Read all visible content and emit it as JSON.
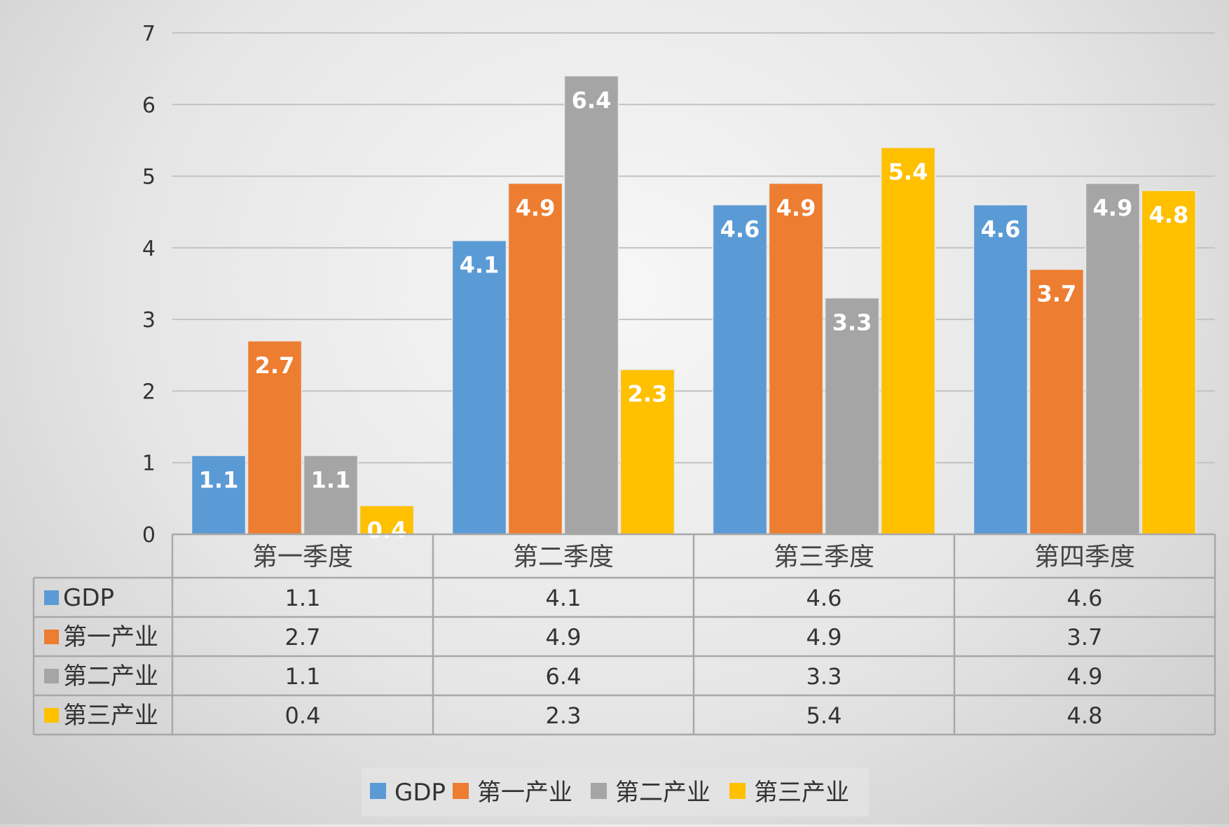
{
  "chart_data": {
    "type": "bar",
    "title": "",
    "xlabel": "",
    "ylabel": "",
    "ylim": [
      0,
      7
    ],
    "yticks": [
      0,
      1,
      2,
      3,
      4,
      5,
      6,
      7
    ],
    "grid": true,
    "data_table": true,
    "legend_position": "bottom",
    "categories": [
      "第一季度",
      "第二季度",
      "第三季度",
      "第四季度"
    ],
    "series": [
      {
        "name": "GDP",
        "color": "#5b9bd5",
        "values": [
          1.1,
          4.1,
          4.6,
          4.6
        ]
      },
      {
        "name": "第一产业",
        "color": "#ed7d31",
        "values": [
          2.7,
          4.9,
          4.9,
          3.7
        ]
      },
      {
        "name": "第二产业",
        "color": "#a5a5a5",
        "values": [
          1.1,
          6.4,
          3.3,
          4.9
        ]
      },
      {
        "name": "第三产业",
        "color": "#ffc000",
        "values": [
          0.4,
          2.3,
          5.4,
          4.8
        ]
      }
    ]
  }
}
